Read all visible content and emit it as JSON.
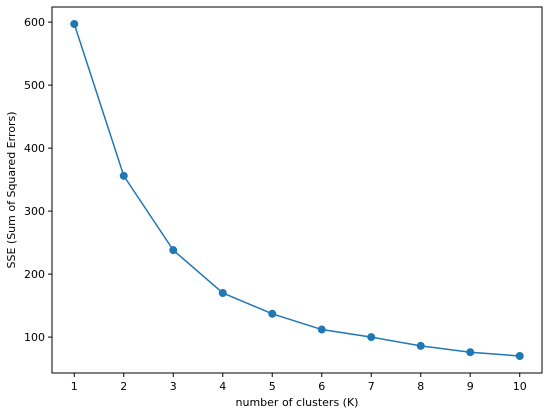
{
  "chart_data": {
    "type": "line",
    "title": "",
    "xlabel": "number of clusters (K)",
    "ylabel": "SSE (Sum of Squared Errors)",
    "x": [
      1,
      2,
      3,
      4,
      5,
      6,
      7,
      8,
      9,
      10
    ],
    "series": [
      {
        "values": [
          597,
          356,
          238,
          170,
          137,
          112,
          100,
          86,
          76,
          70
        ]
      }
    ],
    "xticks": [
      1,
      2,
      3,
      4,
      5,
      6,
      7,
      8,
      9,
      10
    ],
    "yticks": [
      100,
      200,
      300,
      400,
      500,
      600
    ],
    "xlim": [
      0.55,
      10.45
    ],
    "ylim": [
      43,
      624
    ],
    "grid": false,
    "legend": "none",
    "marker": "circle",
    "line_color": "#1f77b4",
    "marker_color": "#1f77b4"
  }
}
